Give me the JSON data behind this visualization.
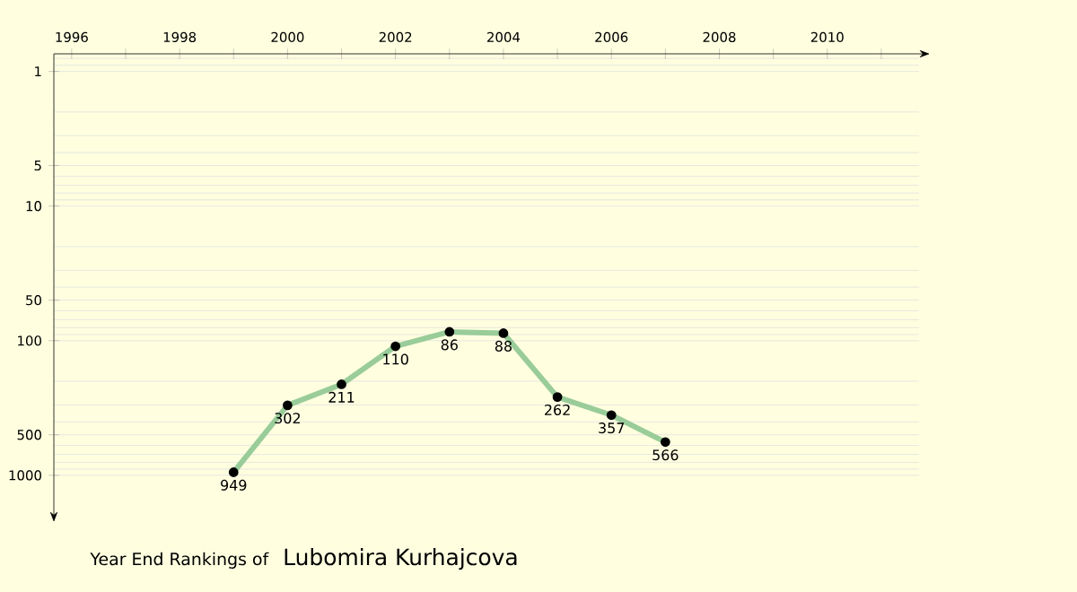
{
  "chart_data": {
    "type": "line",
    "title": "Year End Rankings of",
    "subtitle": "Lubomira Kurhajcova",
    "x": [
      1999,
      2000,
      2001,
      2002,
      2003,
      2004,
      2005,
      2006,
      2007
    ],
    "series": [
      {
        "color": "#99cc99",
        "values": [
          949,
          302,
          211,
          110,
          86,
          88,
          262,
          357,
          566
        ]
      }
    ],
    "xlim": [
      1995.67,
      2011.7
    ],
    "ylim": [
      1850,
      0.74
    ],
    "log": "y",
    "xticks": [
      1996,
      {
        "value": 1997,
        "label": null
      },
      1998,
      {
        "value": 1999,
        "label": null
      },
      2000,
      {
        "value": 2001,
        "label": null
      },
      2002,
      {
        "value": 2003,
        "label": null
      },
      2004,
      {
        "value": 2005,
        "label": null
      },
      2006,
      {
        "value": 2007,
        "label": null
      },
      2008,
      {
        "value": 2009,
        "label": null
      },
      2010,
      {
        "value": 2011,
        "label": null
      }
    ],
    "yticks": [
      1,
      5,
      10,
      50,
      100,
      500,
      1000
    ],
    "grid": "y",
    "marker": "circle",
    "line_style": "solid",
    "data_labels": true
  }
}
